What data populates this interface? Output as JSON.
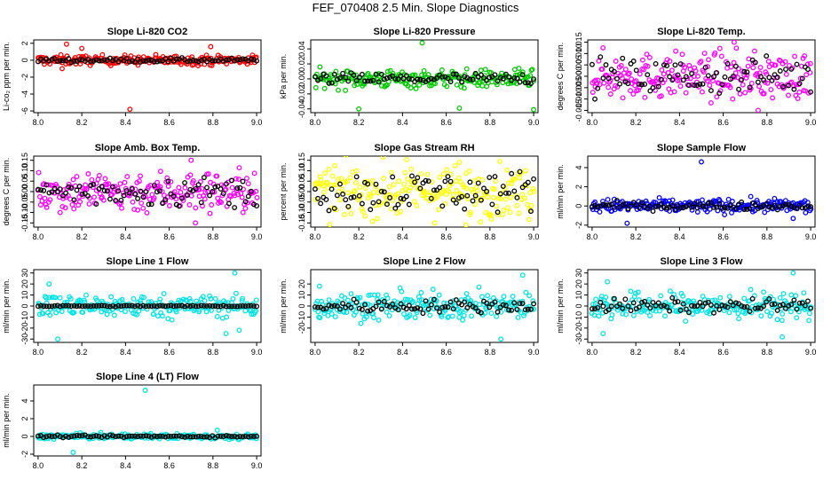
{
  "title": "FEF_070408  2.5 Min. Slope Diagnostics",
  "chart_data": [
    {
      "type": "scatter",
      "title": "Slope Li-820 CO2",
      "ylabel": "Li-co₂ ppm per min.",
      "color": "#ff0000",
      "xlim": [
        7.98,
        9.02
      ],
      "ylim": [
        -6.2,
        2.4
      ],
      "xticks": [
        8.0,
        8.2,
        8.4,
        8.6,
        8.8,
        9.0
      ],
      "yticks": [
        -6,
        -4,
        -2,
        0,
        2
      ],
      "xtick_labels": [
        "8.0",
        "8.2",
        "8.4",
        "8.6",
        "8.8",
        "9.0"
      ],
      "ytick_labels": [
        "-6",
        "-4",
        "-2",
        "0",
        "2"
      ],
      "spread": 0.28,
      "outliers": [
        {
          "x": 8.13,
          "y": 1.9
        },
        {
          "x": 8.42,
          "y": -5.8
        },
        {
          "x": 8.11,
          "y": -1.0
        },
        {
          "x": 8.79,
          "y": 1.6
        },
        {
          "x": 8.2,
          "y": 1.4
        }
      ],
      "black_spread": 0.12
    },
    {
      "type": "scatter",
      "title": "Slope Li-820 Pressure",
      "ylabel": "kPa per min.",
      "color": "#00cc00",
      "xlim": [
        7.98,
        9.02
      ],
      "ylim": [
        -0.045,
        0.052
      ],
      "xticks": [
        8.0,
        8.2,
        8.4,
        8.6,
        8.8,
        9.0
      ],
      "yticks": [
        -0.04,
        -0.02,
        0.0,
        0.02,
        0.04
      ],
      "xtick_labels": [
        "8.0",
        "8.2",
        "8.4",
        "8.6",
        "8.8",
        "9.0"
      ],
      "ytick_labels": [
        "-0.04",
        "-0.02",
        "0.00",
        "0.02",
        "0.04"
      ],
      "spread": 0.006,
      "outliers": [
        {
          "x": 8.49,
          "y": 0.048
        },
        {
          "x": 8.2,
          "y": -0.04
        },
        {
          "x": 8.66,
          "y": -0.039
        },
        {
          "x": 9.0,
          "y": -0.041
        }
      ],
      "black_spread": 0.004
    },
    {
      "type": "scatter",
      "title": "Slope Li-820 Temp.",
      "ylabel": "degrees C per min.",
      "color": "#ff00ff",
      "xlim": [
        7.98,
        9.02
      ],
      "ylim": [
        -0.016,
        0.016
      ],
      "xticks": [
        8.0,
        8.2,
        8.4,
        8.6,
        8.8,
        9.0
      ],
      "yticks": [
        -0.015,
        -0.01,
        -0.005,
        0.0,
        0.005,
        0.01,
        0.015
      ],
      "xtick_labels": [
        "8.0",
        "8.2",
        "8.4",
        "8.6",
        "8.8",
        "9.0"
      ],
      "ytick_labels": [
        "-0.015",
        "-0.010",
        "-0.005",
        "0.000",
        "0.005",
        "0.010",
        "0.015"
      ],
      "spread": 0.005,
      "outliers": [
        {
          "x": 8.65,
          "y": 0.015
        },
        {
          "x": 8.76,
          "y": -0.015
        }
      ],
      "black_spread": 0.004
    },
    {
      "type": "scatter",
      "title": "Slope Amb. Box Temp.",
      "ylabel": "degrees C per min.",
      "color": "#ff00ff",
      "xlim": [
        7.98,
        9.02
      ],
      "ylim": [
        -0.17,
        0.17
      ],
      "xticks": [
        8.0,
        8.2,
        8.4,
        8.6,
        8.8,
        9.0
      ],
      "yticks": [
        -0.15,
        -0.1,
        -0.05,
        0.0,
        0.05,
        0.1,
        0.15
      ],
      "xtick_labels": [
        "8.0",
        "8.2",
        "8.4",
        "8.6",
        "8.8",
        "9.0"
      ],
      "ytick_labels": [
        "-0.15",
        "-0.10",
        "-0.05",
        "0.00",
        "0.05",
        "0.10",
        "0.15"
      ],
      "spread": 0.05,
      "outliers": [
        {
          "x": 8.7,
          "y": 0.15
        },
        {
          "x": 8.72,
          "y": -0.15
        }
      ],
      "black_spread": 0.035
    },
    {
      "type": "scatter",
      "title": "Slope Gas Stream RH",
      "ylabel": "percent per min.",
      "color": "#ffff00",
      "xlim": [
        7.98,
        9.02
      ],
      "ylim": [
        -0.17,
        0.17
      ],
      "xticks": [
        8.0,
        8.2,
        8.4,
        8.6,
        8.8,
        9.0
      ],
      "yticks": [
        -0.15,
        -0.1,
        -0.05,
        0.0,
        0.05,
        0.1,
        0.15
      ],
      "xtick_labels": [
        "8.0",
        "8.2",
        "8.4",
        "8.6",
        "8.8",
        "9.0"
      ],
      "ytick_labels": [
        "-0.15",
        "-0.10",
        "-0.05",
        "0.00",
        "0.05",
        "0.10",
        "0.15"
      ],
      "spread": 0.06,
      "outliers": [
        {
          "x": 8.69,
          "y": -0.16
        },
        {
          "x": 8.66,
          "y": 0.14
        }
      ],
      "black_spread": 0.05
    },
    {
      "type": "scatter",
      "title": "Slope Sample Flow",
      "ylabel": "ml/min per min.",
      "color": "#0000ff",
      "xlim": [
        7.98,
        9.02
      ],
      "ylim": [
        -2.2,
        5.2
      ],
      "xticks": [
        8.0,
        8.2,
        8.4,
        8.6,
        8.8,
        9.0
      ],
      "yticks": [
        -2,
        0,
        2,
        4
      ],
      "xtick_labels": [
        "8.0",
        "8.2",
        "8.4",
        "8.6",
        "8.8",
        "9.0"
      ],
      "ytick_labels": [
        "-2",
        "0",
        "2",
        "4"
      ],
      "spread": 0.35,
      "outliers": [
        {
          "x": 8.5,
          "y": 4.6
        },
        {
          "x": 8.16,
          "y": -1.8
        },
        {
          "x": 8.92,
          "y": -1.3
        }
      ],
      "black_spread": 0.2
    },
    {
      "type": "scatter",
      "title": "Slope Line 1 Flow",
      "ylabel": "ml/min per min.",
      "color": "#00e5e5",
      "xlim": [
        7.98,
        9.02
      ],
      "ylim": [
        -33,
        33
      ],
      "xticks": [
        8.0,
        8.2,
        8.4,
        8.6,
        8.8,
        9.0
      ],
      "yticks": [
        -30,
        -20,
        -10,
        0,
        10,
        20,
        30
      ],
      "xtick_labels": [
        "8.0",
        "8.2",
        "8.4",
        "8.6",
        "8.8",
        "9.0"
      ],
      "ytick_labels": [
        "-30",
        "-20",
        "-10",
        "0",
        "10",
        "20",
        "30"
      ],
      "spread": 5,
      "outliers": [
        {
          "x": 8.09,
          "y": -30
        },
        {
          "x": 8.9,
          "y": 30
        },
        {
          "x": 8.86,
          "y": -25
        },
        {
          "x": 8.92,
          "y": -22
        },
        {
          "x": 8.05,
          "y": 20
        }
      ],
      "black_spread": 0.3
    },
    {
      "type": "scatter",
      "title": "Slope Line 2 Flow",
      "ylabel": "ml/min per min.",
      "color": "#00e5e5",
      "xlim": [
        7.98,
        9.02
      ],
      "ylim": [
        -33,
        33
      ],
      "xticks": [
        8.0,
        8.2,
        8.4,
        8.6,
        8.8,
        9.0
      ],
      "yticks": [
        -20,
        -10,
        0,
        10,
        20
      ],
      "xtick_labels": [
        "8.0",
        "8.2",
        "8.4",
        "8.6",
        "8.8",
        "9.0"
      ],
      "ytick_labels": [
        "-20",
        "-10",
        "0",
        "10",
        "20"
      ],
      "spread": 6,
      "outliers": [
        {
          "x": 8.95,
          "y": 28
        },
        {
          "x": 8.85,
          "y": -30
        },
        {
          "x": 8.02,
          "y": 18
        }
      ],
      "black_spread": 3
    },
    {
      "type": "scatter",
      "title": "Slope Line 3 Flow",
      "ylabel": "ml/min per min.",
      "color": "#00e5e5",
      "xlim": [
        7.98,
        9.02
      ],
      "ylim": [
        -33,
        33
      ],
      "xticks": [
        8.0,
        8.2,
        8.4,
        8.6,
        8.8,
        9.0
      ],
      "yticks": [
        -30,
        -20,
        -10,
        0,
        10,
        20,
        30
      ],
      "xtick_labels": [
        "8.0",
        "8.2",
        "8.4",
        "8.6",
        "8.8",
        "9.0"
      ],
      "ytick_labels": [
        "-30",
        "-20",
        "-10",
        "0",
        "10",
        "20",
        "30"
      ],
      "spread": 6,
      "outliers": [
        {
          "x": 8.05,
          "y": -25
        },
        {
          "x": 8.92,
          "y": 30
        },
        {
          "x": 8.87,
          "y": -28
        },
        {
          "x": 8.07,
          "y": 22
        }
      ],
      "black_spread": 3
    },
    {
      "type": "scatter",
      "title": "Slope Line 4 (LT) Flow",
      "ylabel": "ml/min per min.",
      "color": "#00e5e5",
      "xlim": [
        7.98,
        9.02
      ],
      "ylim": [
        -2.2,
        5.8
      ],
      "xticks": [
        8.0,
        8.2,
        8.4,
        8.6,
        8.8,
        9.0
      ],
      "yticks": [
        -2,
        0,
        2,
        4
      ],
      "xtick_labels": [
        "8.0",
        "8.2",
        "8.4",
        "8.6",
        "8.8",
        "9.0"
      ],
      "ytick_labels": [
        "-2",
        "0",
        "2",
        "4"
      ],
      "spread": 0.15,
      "outliers": [
        {
          "x": 8.49,
          "y": 5.2
        },
        {
          "x": 8.16,
          "y": -1.8
        },
        {
          "x": 8.82,
          "y": 0.7
        }
      ],
      "black_spread": 0.06
    }
  ]
}
